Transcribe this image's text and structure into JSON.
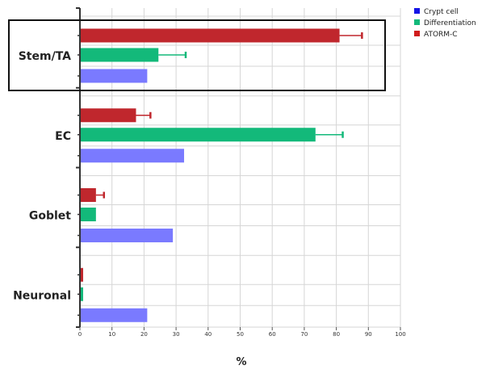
{
  "chart_data": {
    "type": "bar",
    "orientation": "horizontal",
    "title": "",
    "xlabel": "%",
    "ylabel": "",
    "xlim": [
      0,
      100
    ],
    "x_ticks": [
      "0",
      "10",
      "20",
      "30",
      "40",
      "50",
      "60",
      "70",
      "80",
      "90",
      "100"
    ],
    "grid": true,
    "legend_position": "top-right",
    "categories": [
      "Stem/TA",
      "EC",
      "Goblet",
      "Neuronal"
    ],
    "series": [
      {
        "name": "ATORM-C",
        "color": "#c0272d",
        "values": [
          81,
          17.5,
          5,
          1
        ],
        "errors": [
          7,
          4.5,
          2.5,
          0
        ]
      },
      {
        "name": "Differentiation",
        "color": "#13b97a",
        "values": [
          24.5,
          73.5,
          5,
          1
        ],
        "errors": [
          8.5,
          8.5,
          0,
          0
        ]
      },
      {
        "name": "Crypt cell",
        "color": "#7a7aff",
        "values": [
          21,
          32.5,
          29,
          21
        ],
        "errors": [
          0,
          0,
          0,
          0
        ]
      }
    ],
    "legend": [
      {
        "label": "Crypt cell",
        "color": "#1414e6"
      },
      {
        "label": "Differentiation",
        "color": "#13b97a"
      },
      {
        "label": "ATORM-C",
        "color": "#d01c1c"
      }
    ],
    "highlighted_category": "Stem/TA"
  }
}
